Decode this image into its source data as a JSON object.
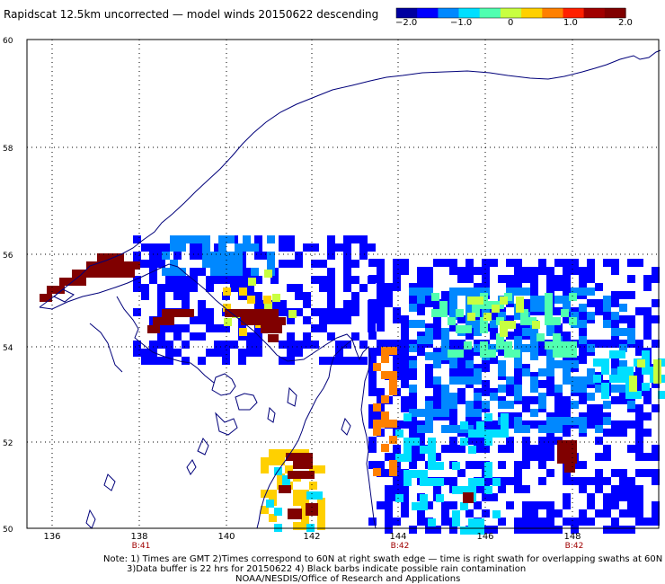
{
  "title": "Rapidscat 12.5km uncorrected — model winds 20150622 descending",
  "colorbar": {
    "tick_labels": [
      "−2.0",
      "−1.0",
      "0",
      "1.0",
      "2.0"
    ],
    "colors": [
      "#0000a0",
      "#0000ff",
      "#0088ff",
      "#00dfff",
      "#50ffb0",
      "#c8ff40",
      "#ffd000",
      "#ff8000",
      "#ff2000",
      "#a00000",
      "#800000"
    ]
  },
  "axes": {
    "lon_ticks": [
      "136",
      "138",
      "140",
      "142",
      "144",
      "146",
      "148"
    ],
    "lat_ticks": [
      "60",
      "58",
      "56",
      "54",
      "52",
      "50"
    ],
    "pass_times": [
      {
        "lon": "138",
        "label": "B:41"
      },
      {
        "lon": "144",
        "label": "B:42"
      },
      {
        "lon": "148",
        "label": "B:42"
      }
    ]
  },
  "notes": {
    "line1": "Note: 1) Times are GMT 2)Times correspond to 60N at right swath edge — time is right swath for overlapping swaths at 60N",
    "line2": "3)Data buffer is 22 hrs for 20150622 4) Black barbs indicate possible rain contamination",
    "line3": "NOAA/NESDIS/Office of Research and Applications"
  }
}
